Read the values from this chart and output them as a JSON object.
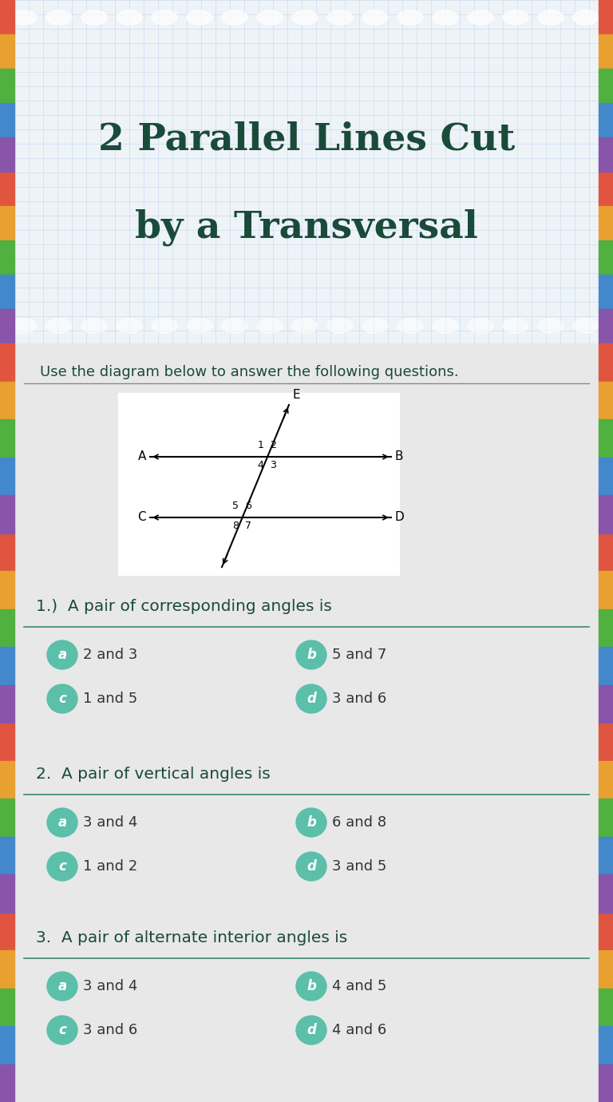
{
  "title_line1": "2 Parallel Lines Cut",
  "title_line2": "by a Transversal",
  "title_color": "#1a4a3a",
  "title_fontsize": 34,
  "header_bg": "#eef3f8",
  "header_grid_color": "#ccdded",
  "body_bg": "#a07850",
  "content_bg": "#e8e8e8",
  "instruction": "Use the diagram below to answer the following questions.",
  "instruction_color": "#1a4a3a",
  "question_color": "#1a4a3a",
  "answer_color": "#333333",
  "teal_circle": "#5bbfaa",
  "dot_color": "#ffffff",
  "strip_colors": [
    "#e05540",
    "#e8a030",
    "#50b040",
    "#4488cc",
    "#8855aa"
  ],
  "questions": [
    {
      "number": "1.)",
      "text": "A pair of corresponding angles is",
      "answers": [
        {
          "label": "a",
          "text": "2 and 3"
        },
        {
          "label": "b",
          "text": "5 and 7"
        },
        {
          "label": "c",
          "text": "1 and 5"
        },
        {
          "label": "d",
          "text": "3 and 6"
        }
      ]
    },
    {
      "number": "2.",
      "text": "A pair of vertical angles is",
      "answers": [
        {
          "label": "a",
          "text": "3 and 4"
        },
        {
          "label": "b",
          "text": "6 and 8"
        },
        {
          "label": "c",
          "text": "1 and 2"
        },
        {
          "label": "d",
          "text": "3 and 5"
        }
      ]
    },
    {
      "number": "3.",
      "text": "A pair of alternate interior angles is",
      "answers": [
        {
          "label": "a",
          "text": "3 and 4"
        },
        {
          "label": "b",
          "text": "4 and 5"
        },
        {
          "label": "c",
          "text": "3 and 6"
        },
        {
          "label": "d",
          "text": "4 and 6"
        }
      ]
    }
  ]
}
